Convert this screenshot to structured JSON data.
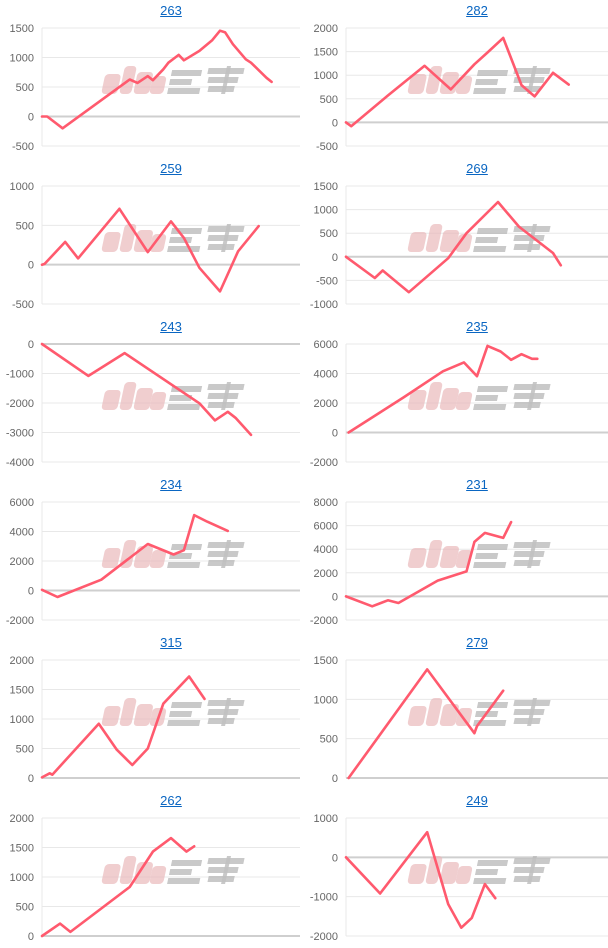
{
  "watermark": "みんレポ",
  "colors": {
    "line": "#ff5a6e",
    "grid": "#e8e8e8",
    "zero": "#cfcfcf",
    "title_link": "#0a66c2",
    "watermark_pink": "#e9b7b9",
    "watermark_gray": "#b8b8b8"
  },
  "chart_data": [
    {
      "type": "line",
      "title": "263",
      "ylim": [
        -500,
        1500
      ],
      "yticks": [
        -500,
        0,
        500,
        1000,
        1500
      ],
      "xlim": [
        0,
        100
      ],
      "points": [
        [
          0,
          0
        ],
        [
          2,
          0
        ],
        [
          8,
          -200
        ],
        [
          34,
          627
        ],
        [
          37,
          570
        ],
        [
          41,
          685
        ],
        [
          43,
          616
        ],
        [
          47,
          800
        ],
        [
          49,
          912
        ],
        [
          53,
          1044
        ],
        [
          55,
          952
        ],
        [
          61,
          1112
        ],
        [
          66,
          1295
        ],
        [
          69,
          1454
        ],
        [
          71,
          1426
        ],
        [
          74,
          1226
        ],
        [
          79,
          970
        ],
        [
          81,
          912
        ],
        [
          87,
          656
        ],
        [
          89,
          587
        ]
      ]
    },
    {
      "type": "line",
      "title": "282",
      "ylim": [
        -500,
        2000
      ],
      "yticks": [
        -500,
        0,
        500,
        1000,
        1500,
        2000
      ],
      "xlim": [
        0,
        100
      ],
      "points": [
        [
          0,
          0
        ],
        [
          2,
          -80
        ],
        [
          16,
          570
        ],
        [
          30,
          1200
        ],
        [
          40,
          700
        ],
        [
          49,
          1230
        ],
        [
          54,
          1480
        ],
        [
          60,
          1790
        ],
        [
          67,
          790
        ],
        [
          72,
          550
        ],
        [
          79,
          1050
        ],
        [
          85,
          800
        ]
      ]
    },
    {
      "type": "line",
      "title": "259",
      "ylim": [
        -500,
        1000
      ],
      "yticks": [
        -500,
        0,
        500,
        1000
      ],
      "xlim": [
        0,
        100
      ],
      "points": [
        [
          0,
          0
        ],
        [
          1,
          10
        ],
        [
          9,
          290
        ],
        [
          14,
          80
        ],
        [
          30,
          710
        ],
        [
          35,
          460
        ],
        [
          41,
          160
        ],
        [
          50,
          550
        ],
        [
          55,
          340
        ],
        [
          61,
          -40
        ],
        [
          69,
          -340
        ],
        [
          76,
          170
        ],
        [
          84,
          490
        ]
      ]
    },
    {
      "type": "line",
      "title": "269",
      "ylim": [
        -1000,
        1500
      ],
      "yticks": [
        -1000,
        -500,
        0,
        500,
        1000,
        1500
      ],
      "xlim": [
        0,
        100
      ],
      "points": [
        [
          0,
          0
        ],
        [
          11,
          -450
        ],
        [
          14,
          -290
        ],
        [
          24,
          -750
        ],
        [
          39,
          -30
        ],
        [
          46,
          500
        ],
        [
          58,
          1160
        ],
        [
          66,
          640
        ],
        [
          79,
          80
        ],
        [
          82,
          -180
        ]
      ]
    },
    {
      "type": "line",
      "title": "243",
      "ylim": [
        -4000,
        0
      ],
      "yticks": [
        -4000,
        -3000,
        -2000,
        -1000,
        0
      ],
      "xlim": [
        0,
        100
      ],
      "points": [
        [
          0,
          0
        ],
        [
          18,
          -1080
        ],
        [
          32,
          -310
        ],
        [
          61,
          -2010
        ],
        [
          67,
          -2590
        ],
        [
          72,
          -2300
        ],
        [
          75,
          -2500
        ],
        [
          81,
          -3080
        ]
      ]
    },
    {
      "type": "line",
      "title": "235",
      "ylim": [
        -2000,
        6000
      ],
      "yticks": [
        -2000,
        0,
        2000,
        4000,
        6000
      ],
      "xlim": [
        0,
        100
      ],
      "points": [
        [
          1,
          0
        ],
        [
          22,
          2380
        ],
        [
          37,
          4150
        ],
        [
          45,
          4750
        ],
        [
          50,
          3820
        ],
        [
          54,
          5870
        ],
        [
          59,
          5490
        ],
        [
          63,
          4930
        ],
        [
          67,
          5310
        ],
        [
          71,
          5000
        ],
        [
          73,
          5000
        ]
      ]
    },
    {
      "type": "line",
      "title": "234",
      "ylim": [
        -2000,
        6000
      ],
      "yticks": [
        -2000,
        0,
        2000,
        4000,
        6000
      ],
      "xlim": [
        0,
        100
      ],
      "points": [
        [
          0,
          50
        ],
        [
          6,
          -440
        ],
        [
          23,
          730
        ],
        [
          41,
          3150
        ],
        [
          51,
          2440
        ],
        [
          55,
          2730
        ],
        [
          59,
          5110
        ],
        [
          64,
          4670
        ],
        [
          72,
          4040
        ]
      ]
    },
    {
      "type": "line",
      "title": "231",
      "ylim": [
        -2000,
        8000
      ],
      "yticks": [
        -2000,
        0,
        2000,
        4000,
        6000,
        8000
      ],
      "xlim": [
        0,
        100
      ],
      "points": [
        [
          0,
          0
        ],
        [
          10,
          -840
        ],
        [
          16,
          -330
        ],
        [
          20,
          -560
        ],
        [
          35,
          1340
        ],
        [
          46,
          2120
        ],
        [
          49,
          4620
        ],
        [
          53,
          5380
        ],
        [
          60,
          4960
        ],
        [
          63,
          6300
        ]
      ]
    },
    {
      "type": "line",
      "title": "315",
      "ylim": [
        0,
        2000
      ],
      "yticks": [
        0,
        500,
        1000,
        1500,
        2000
      ],
      "xlim": [
        0,
        100
      ],
      "points": [
        [
          0,
          10
        ],
        [
          3,
          80
        ],
        [
          4,
          56
        ],
        [
          22,
          920
        ],
        [
          29,
          480
        ],
        [
          35,
          220
        ],
        [
          41,
          500
        ],
        [
          47,
          1260
        ],
        [
          57,
          1720
        ],
        [
          63,
          1340
        ]
      ]
    },
    {
      "type": "line",
      "title": "279",
      "ylim": [
        0,
        1500
      ],
      "yticks": [
        0,
        500,
        1000,
        1500
      ],
      "xlim": [
        0,
        100
      ],
      "points": [
        [
          1,
          0
        ],
        [
          31,
          1380
        ],
        [
          49,
          570
        ],
        [
          50,
          660
        ],
        [
          60,
          1110
        ]
      ]
    },
    {
      "type": "line",
      "title": "262",
      "ylim": [
        0,
        2000
      ],
      "yticks": [
        0,
        500,
        1000,
        1500,
        2000
      ],
      "xlim": [
        0,
        100
      ],
      "points": [
        [
          0,
          0
        ],
        [
          7,
          210
        ],
        [
          11,
          70
        ],
        [
          34,
          830
        ],
        [
          43,
          1430
        ],
        [
          50,
          1660
        ],
        [
          56,
          1430
        ],
        [
          59,
          1520
        ]
      ]
    },
    {
      "type": "line",
      "title": "249",
      "ylim": [
        -2000,
        1000
      ],
      "yticks": [
        -2000,
        -1000,
        0,
        1000
      ],
      "xlim": [
        0,
        100
      ],
      "points": [
        [
          0,
          0
        ],
        [
          13,
          -920
        ],
        [
          31,
          640
        ],
        [
          39,
          -1190
        ],
        [
          44,
          -1790
        ],
        [
          48,
          -1540
        ],
        [
          53,
          -680
        ],
        [
          57,
          -1040
        ]
      ]
    }
  ]
}
